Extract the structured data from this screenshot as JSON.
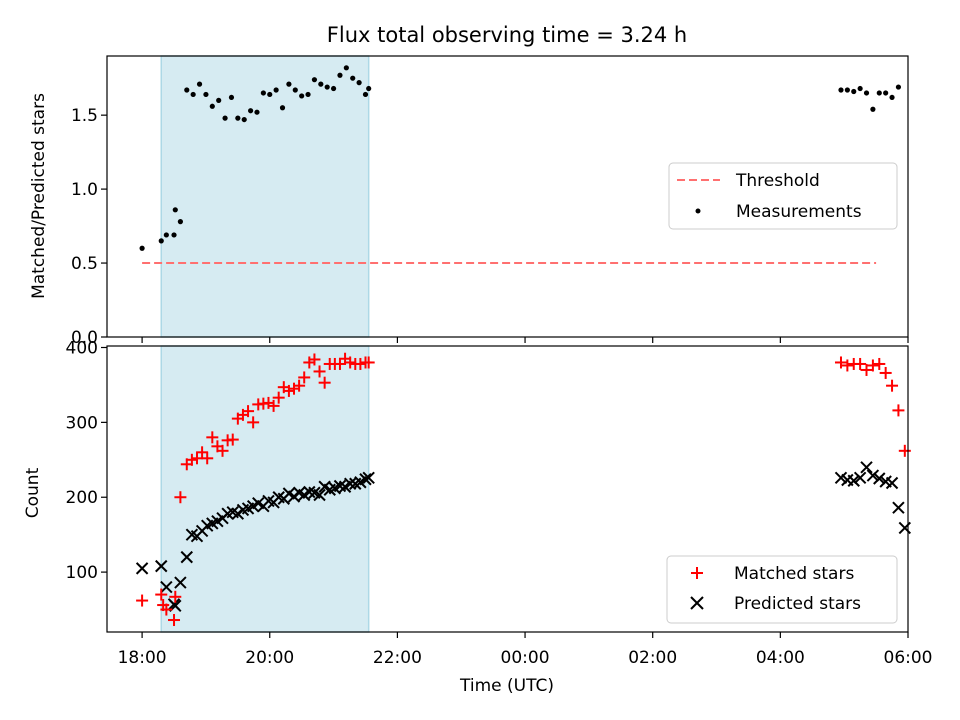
{
  "chart_data": [
    {
      "type": "scatter",
      "title": "Flux total observing time = 3.24 h",
      "ylabel": "Matched/Predicted stars",
      "xlabel": "",
      "xlim": [
        -0.55,
        12.0
      ],
      "ylim": [
        0.0,
        1.9
      ],
      "yticks": [
        0.0,
        0.5,
        1.0,
        1.5
      ],
      "ytick_labels": [
        "0.0",
        "0.5",
        "1.0",
        "1.5"
      ],
      "shaded_span": {
        "x0": 0.3,
        "x1": 3.55,
        "color": "#add8e6"
      },
      "legend": {
        "location": "center-right",
        "entries": [
          "Threshold",
          "Measurements"
        ]
      },
      "series": [
        {
          "name": "Threshold",
          "style": "dashed-line",
          "color": "#ff7070",
          "x": [
            0.0,
            11.5
          ],
          "y": [
            0.5,
            0.5
          ]
        },
        {
          "name": "Measurements",
          "style": "dot",
          "color": "#000000",
          "x": [
            0.0,
            0.3,
            0.38,
            0.5,
            0.52,
            0.6,
            0.7,
            0.8,
            0.9,
            1.0,
            1.1,
            1.2,
            1.3,
            1.4,
            1.5,
            1.6,
            1.7,
            1.8,
            1.9,
            2.0,
            2.1,
            2.2,
            2.3,
            2.4,
            2.5,
            2.6,
            2.7,
            2.8,
            2.9,
            3.0,
            3.1,
            3.2,
            3.3,
            3.4,
            3.5,
            3.55,
            10.95,
            11.05,
            11.15,
            11.25,
            11.35,
            11.45,
            11.55,
            11.65,
            11.75,
            11.85
          ],
          "y": [
            0.6,
            0.65,
            0.69,
            0.69,
            0.86,
            0.78,
            1.67,
            1.64,
            1.71,
            1.64,
            1.56,
            1.6,
            1.48,
            1.62,
            1.48,
            1.47,
            1.53,
            1.52,
            1.65,
            1.64,
            1.67,
            1.55,
            1.71,
            1.67,
            1.63,
            1.64,
            1.74,
            1.71,
            1.69,
            1.68,
            1.77,
            1.82,
            1.75,
            1.72,
            1.64,
            1.68,
            1.67,
            1.67,
            1.66,
            1.68,
            1.65,
            1.54,
            1.65,
            1.65,
            1.62,
            1.69
          ]
        }
      ]
    },
    {
      "type": "scatter",
      "title": "",
      "ylabel": "Count",
      "xlabel": "Time (UTC)",
      "xlim": [
        -0.55,
        12.0
      ],
      "ylim": [
        20,
        402
      ],
      "yticks": [
        100,
        200,
        300,
        400
      ],
      "ytick_labels": [
        "100",
        "200",
        "300",
        "400"
      ],
      "xticks": [
        0,
        2,
        4,
        6,
        8,
        10,
        12
      ],
      "xtick_labels": [
        "18:00",
        "20:00",
        "22:00",
        "00:00",
        "02:00",
        "04:00",
        "06:00"
      ],
      "shaded_span": {
        "x0": 0.3,
        "x1": 3.55,
        "color": "#add8e6"
      },
      "legend": {
        "location": "lower-right",
        "entries": [
          "Matched stars",
          "Predicted stars"
        ]
      },
      "series": [
        {
          "name": "Matched stars",
          "marker": "+",
          "color": "#ff0000",
          "x": [
            0.0,
            0.3,
            0.33,
            0.38,
            0.5,
            0.52,
            0.6,
            0.7,
            0.78,
            0.86,
            0.94,
            1.02,
            1.1,
            1.18,
            1.26,
            1.34,
            1.42,
            1.5,
            1.58,
            1.66,
            1.74,
            1.82,
            1.9,
            1.98,
            2.06,
            2.14,
            2.22,
            2.3,
            2.38,
            2.46,
            2.54,
            2.62,
            2.7,
            2.78,
            2.86,
            2.94,
            3.02,
            3.1,
            3.18,
            3.26,
            3.34,
            3.42,
            3.5,
            3.55,
            10.95,
            11.05,
            11.15,
            11.25,
            11.35,
            11.45,
            11.55,
            11.65,
            11.75,
            11.85,
            11.95
          ],
          "y": [
            62,
            70,
            56,
            50,
            36,
            67,
            200,
            244,
            250,
            252,
            260,
            252,
            280,
            268,
            262,
            276,
            277,
            305,
            310,
            315,
            300,
            324,
            325,
            326,
            322,
            333,
            347,
            342,
            345,
            349,
            360,
            380,
            384,
            368,
            353,
            378,
            378,
            378,
            385,
            380,
            378,
            378,
            380,
            380,
            380,
            376,
            378,
            378,
            370,
            376,
            378,
            366,
            349,
            316,
            262
          ]
        },
        {
          "name": "Predicted stars",
          "marker": "x",
          "color": "#000000",
          "x": [
            0.0,
            0.3,
            0.38,
            0.5,
            0.52,
            0.6,
            0.7,
            0.78,
            0.86,
            0.94,
            1.02,
            1.1,
            1.18,
            1.26,
            1.34,
            1.42,
            1.5,
            1.58,
            1.66,
            1.74,
            1.82,
            1.9,
            1.98,
            2.06,
            2.14,
            2.22,
            2.3,
            2.38,
            2.46,
            2.54,
            2.62,
            2.7,
            2.78,
            2.86,
            2.94,
            3.02,
            3.1,
            3.18,
            3.26,
            3.34,
            3.42,
            3.5,
            3.55,
            10.95,
            11.05,
            11.15,
            11.25,
            11.35,
            11.45,
            11.55,
            11.65,
            11.75,
            11.85,
            11.95
          ],
          "y": [
            105,
            108,
            80,
            57,
            55,
            86,
            120,
            150,
            148,
            155,
            162,
            165,
            168,
            172,
            178,
            180,
            178,
            183,
            185,
            188,
            192,
            188,
            195,
            193,
            200,
            198,
            205,
            201,
            206,
            203,
            207,
            206,
            203,
            214,
            210,
            212,
            215,
            214,
            218,
            218,
            220,
            224,
            226,
            226,
            223,
            222,
            226,
            240,
            229,
            225,
            221,
            219,
            186,
            159
          ]
        }
      ]
    }
  ]
}
